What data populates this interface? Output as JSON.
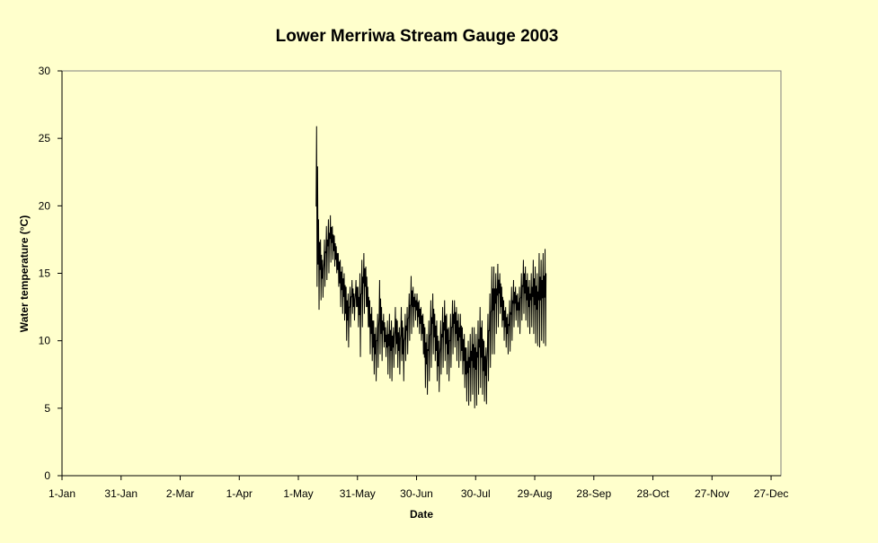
{
  "chart_data": {
    "type": "line",
    "title": "Lower Merriwa Stream Gauge 2003",
    "xlabel": "Date",
    "ylabel": "Water temperature (°C)",
    "ylim": [
      0,
      30
    ],
    "yticks": [
      0,
      5,
      10,
      15,
      20,
      25,
      30
    ],
    "xlim": [
      "2003-01-01",
      "2003-12-31"
    ],
    "xticks": [
      {
        "date": "2003-01-01",
        "label": "1-Jan"
      },
      {
        "date": "2003-01-31",
        "label": "31-Jan"
      },
      {
        "date": "2003-03-02",
        "label": "2-Mar"
      },
      {
        "date": "2003-04-01",
        "label": "1-Apr"
      },
      {
        "date": "2003-05-01",
        "label": "1-May"
      },
      {
        "date": "2003-05-31",
        "label": "31-May"
      },
      {
        "date": "2003-06-30",
        "label": "30-Jun"
      },
      {
        "date": "2003-07-30",
        "label": "30-Jul"
      },
      {
        "date": "2003-08-29",
        "label": "29-Aug"
      },
      {
        "date": "2003-09-28",
        "label": "28-Sep"
      },
      {
        "date": "2003-10-28",
        "label": "28-Oct"
      },
      {
        "date": "2003-11-27",
        "label": "27-Nov"
      },
      {
        "date": "2003-12-27",
        "label": "27-Dec"
      }
    ],
    "grid": false,
    "legend": "none",
    "series_color": "#000000",
    "series": [
      {
        "x": [
          "2003-05-10",
          "2003-05-11",
          "2003-05-12",
          "2003-05-13",
          "2003-05-14",
          "2003-05-15",
          "2003-05-16",
          "2003-05-17",
          "2003-05-18",
          "2003-05-19",
          "2003-05-20",
          "2003-05-21",
          "2003-05-22",
          "2003-05-23",
          "2003-05-24",
          "2003-05-25",
          "2003-05-26",
          "2003-05-27",
          "2003-05-28",
          "2003-05-29",
          "2003-05-30",
          "2003-05-31",
          "2003-06-01",
          "2003-06-02",
          "2003-06-03",
          "2003-06-04",
          "2003-06-05",
          "2003-06-06",
          "2003-06-07",
          "2003-06-08",
          "2003-06-09",
          "2003-06-10",
          "2003-06-11",
          "2003-06-12",
          "2003-06-13",
          "2003-06-14",
          "2003-06-15",
          "2003-06-16",
          "2003-06-17",
          "2003-06-18",
          "2003-06-19",
          "2003-06-20",
          "2003-06-21",
          "2003-06-22",
          "2003-06-23",
          "2003-06-24",
          "2003-06-25",
          "2003-06-26",
          "2003-06-27",
          "2003-06-28",
          "2003-06-29",
          "2003-06-30",
          "2003-07-01",
          "2003-07-02",
          "2003-07-03",
          "2003-07-04",
          "2003-07-05",
          "2003-07-06",
          "2003-07-07",
          "2003-07-08",
          "2003-07-09",
          "2003-07-10",
          "2003-07-11",
          "2003-07-12",
          "2003-07-13",
          "2003-07-14",
          "2003-07-15",
          "2003-07-16",
          "2003-07-17",
          "2003-07-18",
          "2003-07-19",
          "2003-07-20",
          "2003-07-21",
          "2003-07-22",
          "2003-07-23",
          "2003-07-24",
          "2003-07-25",
          "2003-07-26",
          "2003-07-27",
          "2003-07-28",
          "2003-07-29",
          "2003-07-30",
          "2003-07-31",
          "2003-08-01",
          "2003-08-02",
          "2003-08-03",
          "2003-08-04",
          "2003-08-05",
          "2003-08-06",
          "2003-08-07",
          "2003-08-08",
          "2003-08-09",
          "2003-08-10",
          "2003-08-11",
          "2003-08-12",
          "2003-08-13",
          "2003-08-14",
          "2003-08-15",
          "2003-08-16",
          "2003-08-17",
          "2003-08-18",
          "2003-08-19",
          "2003-08-20",
          "2003-08-21",
          "2003-08-22",
          "2003-08-23",
          "2003-08-24",
          "2003-08-25",
          "2003-08-26",
          "2003-08-27",
          "2003-08-28",
          "2003-08-29",
          "2003-08-30",
          "2003-08-31",
          "2003-09-01",
          "2003-09-02",
          "2003-09-03"
        ],
        "min": [
          14.0,
          12.3,
          13.0,
          13.2,
          14.0,
          14.5,
          15.0,
          15.8,
          16.0,
          15.5,
          15.0,
          14.0,
          12.5,
          12.0,
          11.5,
          10.0,
          9.5,
          11.0,
          12.0,
          11.5,
          12.5,
          11.0,
          8.8,
          11.0,
          12.0,
          12.5,
          11.0,
          9.0,
          8.5,
          7.5,
          7.0,
          8.0,
          9.0,
          8.5,
          9.5,
          8.8,
          7.5,
          7.2,
          7.0,
          8.0,
          9.0,
          8.0,
          7.5,
          8.5,
          7.0,
          8.5,
          9.0,
          10.0,
          10.5,
          11.0,
          11.5,
          11.0,
          10.5,
          10.0,
          9.0,
          6.5,
          6.0,
          7.0,
          8.0,
          9.0,
          8.5,
          7.0,
          6.2,
          7.5,
          8.0,
          8.5,
          7.5,
          7.0,
          8.0,
          9.0,
          9.5,
          8.5,
          8.0,
          8.5,
          7.5,
          6.5,
          5.5,
          5.2,
          5.5,
          6.0,
          5.0,
          5.2,
          6.0,
          6.5,
          6.0,
          5.5,
          5.3,
          7.0,
          8.0,
          9.0,
          9.0,
          10.5,
          11.0,
          12.0,
          11.0,
          10.0,
          9.5,
          9.0,
          9.2,
          10.0,
          11.0,
          11.5,
          11.0,
          10.5,
          11.5,
          12.0,
          11.5,
          11.0,
          10.5,
          11.0,
          10.5,
          9.8,
          9.6,
          9.5,
          10.0,
          9.8,
          9.6
        ],
        "max": [
          25.9,
          19.0,
          17.5,
          16.0,
          17.5,
          18.5,
          19.0,
          19.3,
          18.5,
          17.8,
          17.0,
          16.5,
          16.0,
          15.5,
          15.0,
          14.0,
          13.5,
          14.0,
          14.5,
          13.5,
          14.5,
          14.0,
          15.0,
          16.0,
          16.5,
          15.5,
          14.0,
          13.0,
          12.5,
          11.5,
          11.0,
          12.0,
          14.5,
          12.5,
          12.0,
          11.0,
          11.5,
          12.0,
          11.5,
          11.0,
          12.5,
          11.5,
          11.0,
          12.5,
          11.0,
          12.0,
          12.5,
          13.5,
          14.8,
          14.0,
          13.5,
          13.5,
          13.0,
          12.5,
          12.0,
          11.0,
          10.5,
          11.5,
          13.0,
          13.5,
          12.0,
          11.5,
          10.0,
          11.5,
          12.5,
          13.0,
          12.0,
          11.0,
          12.0,
          13.0,
          13.0,
          12.5,
          12.0,
          12.0,
          11.0,
          10.5,
          9.5,
          10.0,
          10.5,
          11.0,
          11.0,
          10.5,
          11.5,
          12.5,
          11.5,
          10.0,
          9.5,
          12.0,
          13.5,
          15.5,
          15.5,
          15.0,
          15.7,
          15.0,
          14.0,
          13.0,
          12.5,
          12.0,
          13.0,
          14.0,
          14.5,
          14.0,
          13.5,
          14.0,
          15.0,
          16.0,
          15.5,
          15.0,
          14.5,
          15.0,
          16.0,
          15.5,
          15.0,
          16.5,
          16.0,
          16.5,
          16.8
        ]
      }
    ]
  }
}
